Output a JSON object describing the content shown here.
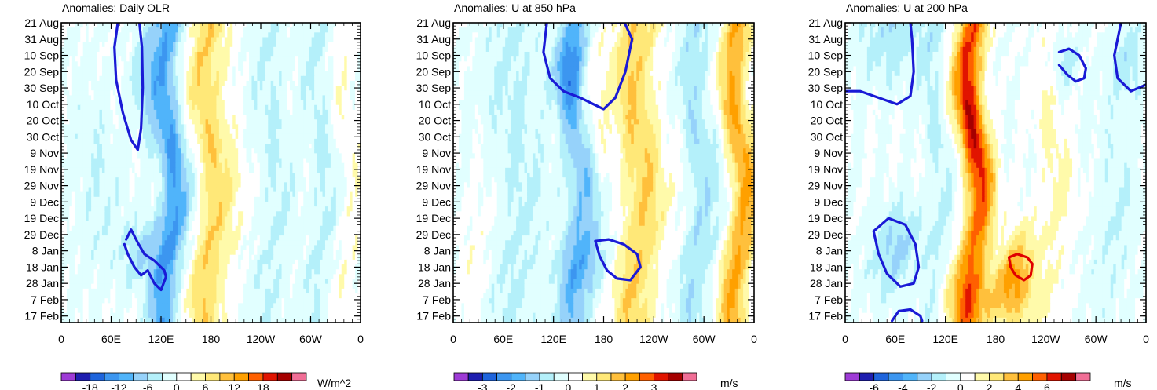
{
  "figure": "Hovmoller diagrams of tropical anomalies",
  "palette": [
    "#9E3BD6",
    "#1E1EAF",
    "#1E64DC",
    "#3C96F0",
    "#50B4FA",
    "#96D2FA",
    "#B4F0FA",
    "#E1FFFF",
    "#FFFFFF",
    "#FFFAAA",
    "#FFE878",
    "#FFC03C",
    "#FFA000",
    "#FF6000",
    "#E11400",
    "#A50000",
    "#F06E96"
  ],
  "chart_data": [
    {
      "type": "heatmap",
      "title": "Anomalies: Daily OLR",
      "field": "olr",
      "xticks": [
        "0",
        "60E",
        "120E",
        "180",
        "120W",
        "60W",
        "0"
      ],
      "yticks": [
        "21 Aug",
        "31 Aug",
        "10 Sep",
        "20 Sep",
        "30 Sep",
        "10 Oct",
        "20 Oct",
        "30 Oct",
        "9 Nov",
        "19 Nov",
        "29 Nov",
        "9 Dec",
        "19 Dec",
        "29 Dec",
        "8 Jan",
        "18 Jan",
        "28 Jan",
        "7 Feb",
        "17 Feb"
      ],
      "xrange": [
        0,
        360
      ],
      "colorbar": {
        "labels": [
          "-18",
          "-12",
          "-6",
          "0",
          "6",
          "12",
          "18"
        ],
        "units": "W/m^2",
        "levels": [
          -21,
          -18,
          -15,
          -12,
          -9,
          -6,
          -3,
          0,
          3,
          6,
          9,
          12,
          15,
          18,
          21
        ]
      },
      "contours": [
        {
          "color": "blue",
          "lon": [
            68,
            64,
            66,
            74,
            84,
            92,
            96,
            98,
            97,
            94
          ],
          "day": [
            0,
            15,
            35,
            55,
            72,
            78,
            65,
            40,
            15,
            0
          ]
        },
        {
          "color": "blue",
          "lon": [
            78,
            84,
            92,
            100,
            112,
            124,
            126,
            120,
            112,
            104,
            96,
            88,
            80,
            76
          ],
          "day": [
            133,
            127,
            135,
            142,
            146,
            152,
            156,
            164,
            160,
            152,
            155,
            150,
            142,
            136
          ]
        }
      ]
    },
    {
      "type": "heatmap",
      "title": "Anomalies: U at 850 hPa",
      "field": "u850",
      "xticks": [
        "0",
        "60E",
        "120E",
        "180",
        "120W",
        "60W",
        "0"
      ],
      "yticks": [
        "21 Aug",
        "31 Aug",
        "10 Sep",
        "20 Sep",
        "30 Sep",
        "10 Oct",
        "20 Oct",
        "30 Oct",
        "9 Nov",
        "19 Nov",
        "29 Nov",
        "9 Dec",
        "19 Dec",
        "29 Dec",
        "8 Jan",
        "18 Jan",
        "28 Jan",
        "7 Feb",
        "17 Feb"
      ],
      "xrange": [
        0,
        360
      ],
      "colorbar": {
        "labels": [
          "-3",
          "-2",
          "-1",
          "0",
          "1",
          "2",
          "3"
        ],
        "units": "m/s",
        "levels": [
          -3.5,
          -3,
          -2.5,
          -2,
          -1.5,
          -1,
          -0.5,
          0,
          0.5,
          1,
          1.5,
          2,
          2.5,
          3,
          3.5
        ]
      },
      "contours": [
        {
          "color": "blue",
          "lon": [
            112,
            108,
            116,
            132,
            152,
            168,
            180,
            194,
            206,
            214,
            205,
            190
          ],
          "day": [
            0,
            18,
            34,
            42,
            46,
            50,
            53,
            46,
            30,
            10,
            0,
            0
          ]
        },
        {
          "color": "blue",
          "lon": [
            170,
            186,
            204,
            220,
            224,
            212,
            196,
            184,
            175,
            170
          ],
          "day": [
            134,
            133,
            136,
            142,
            150,
            158,
            157,
            152,
            143,
            134
          ]
        }
      ]
    },
    {
      "type": "heatmap",
      "title": "Anomalies: U at 200 hPa",
      "field": "u200",
      "xticks": [
        "0",
        "60E",
        "120E",
        "180",
        "120W",
        "60W",
        "0"
      ],
      "yticks": [
        "21 Aug",
        "31 Aug",
        "10 Sep",
        "20 Sep",
        "30 Sep",
        "10 Oct",
        "20 Oct",
        "30 Oct",
        "9 Nov",
        "19 Nov",
        "29 Nov",
        "9 Dec",
        "19 Dec",
        "29 Dec",
        "8 Jan",
        "18 Jan",
        "28 Jan",
        "7 Feb",
        "17 Feb"
      ],
      "xrange": [
        0,
        360
      ],
      "colorbar": {
        "labels": [
          "-6",
          "-4",
          "-2",
          "0",
          "2",
          "4",
          "6"
        ],
        "units": "m/s",
        "levels": [
          -7,
          -6,
          -5,
          -4,
          -3,
          -2,
          -1,
          0,
          1,
          2,
          3,
          4,
          5,
          6,
          7
        ]
      },
      "contours": [
        {
          "color": "blue",
          "lon": [
            0,
            18,
            40,
            62,
            78,
            82,
            80,
            78
          ],
          "day": [
            42,
            42,
            46,
            50,
            45,
            30,
            10,
            0
          ]
        },
        {
          "color": "blue",
          "lon": [
            330,
            322,
            326,
            342,
            360
          ],
          "day": [
            0,
            20,
            34,
            42,
            38
          ]
        },
        {
          "color": "blue",
          "lon": [
            256,
            268,
            280,
            288,
            286,
            276,
            266,
            256
          ],
          "day": [
            18,
            16,
            20,
            28,
            34,
            36,
            32,
            26
          ]
        },
        {
          "color": "blue",
          "lon": [
            34,
            52,
            72,
            84,
            88,
            82,
            66,
            50,
            40,
            34
          ],
          "day": [
            128,
            120,
            124,
            136,
            150,
            160,
            162,
            154,
            142,
            128
          ]
        },
        {
          "color": "blue",
          "lon": [
            56,
            64,
            78,
            90,
            92
          ],
          "day": [
            183,
            177,
            176,
            180,
            183
          ]
        },
        {
          "color": "red",
          "lon": [
            196,
            206,
            218,
            224,
            222,
            214,
            204,
            198,
            196
          ],
          "day": [
            144,
            142,
            144,
            148,
            155,
            158,
            155,
            150,
            144
          ]
        }
      ]
    }
  ]
}
